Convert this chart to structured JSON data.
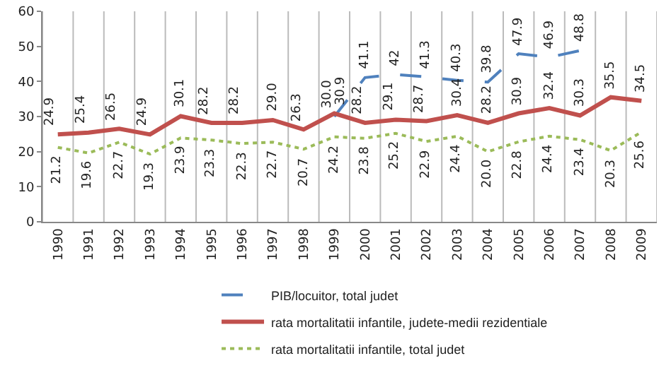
{
  "chart_data": {
    "type": "line",
    "categories": [
      "1990",
      "1991",
      "1992",
      "1993",
      "1994",
      "1995",
      "1996",
      "1997",
      "1998",
      "1999",
      "2000",
      "2001",
      "2002",
      "2003",
      "2004",
      "2005",
      "2006",
      "2007",
      "2008",
      "2009"
    ],
    "ylim": [
      0,
      60
    ],
    "yticks": [
      0,
      10,
      20,
      30,
      40,
      50,
      60
    ],
    "grid": "x",
    "legend": "bottom",
    "marker": "none",
    "series": [
      {
        "name": "PIB/locuitor, total judet",
        "color": "#4f81bd",
        "line_style": "dashed",
        "values": [
          null,
          null,
          null,
          null,
          null,
          null,
          null,
          null,
          null,
          30.0,
          41.1,
          42,
          41.3,
          40.3,
          39.8,
          47.9,
          46.9,
          48.8,
          null,
          null
        ],
        "value_labels": [
          null,
          null,
          null,
          null,
          null,
          null,
          null,
          null,
          null,
          "30.0",
          "41.1",
          "42",
          "41.3",
          "40.3",
          "39.8",
          "47.9",
          "46.9",
          "48.8",
          null,
          null
        ]
      },
      {
        "name": "rata mortalitatii infantile, judete-medii rezidentiale",
        "color": "#c0504d",
        "line_style": "solid",
        "values": [
          24.9,
          25.4,
          26.5,
          24.9,
          30.1,
          28.2,
          28.2,
          29.0,
          26.3,
          30.9,
          28.2,
          29.1,
          28.7,
          30.4,
          28.2,
          30.9,
          32.4,
          30.3,
          35.5,
          34.5
        ],
        "value_labels": [
          "24.9",
          "25.4",
          "26.5",
          "24.9",
          "30.1",
          "28.2",
          "28.2",
          "29.0",
          "26.3",
          "30.9",
          "28.2",
          "29.1",
          "28.7",
          "30.4",
          "28.2",
          "30.9",
          "32.4",
          "30.3",
          "35.5",
          "34.5"
        ]
      },
      {
        "name": "rata mortalitatii infantile, total judet",
        "color": "#9bbb59",
        "line_style": "dotted",
        "values": [
          21.2,
          19.6,
          22.7,
          19.3,
          23.9,
          23.3,
          22.3,
          22.7,
          20.7,
          24.2,
          23.8,
          25.2,
          22.9,
          24.4,
          20.0,
          22.8,
          24.4,
          23.4,
          20.3,
          25.6
        ],
        "value_labels": [
          "21.2",
          "19.6",
          "22.7",
          "19.3",
          "23.9",
          "23.3",
          "22.3",
          "22.7",
          "20.7",
          "24.2",
          "23.8",
          "25.2",
          "22.9",
          "24.4",
          "20.0",
          "22.8",
          "24.4",
          "23.4",
          "20.3",
          "25.6"
        ]
      }
    ]
  }
}
